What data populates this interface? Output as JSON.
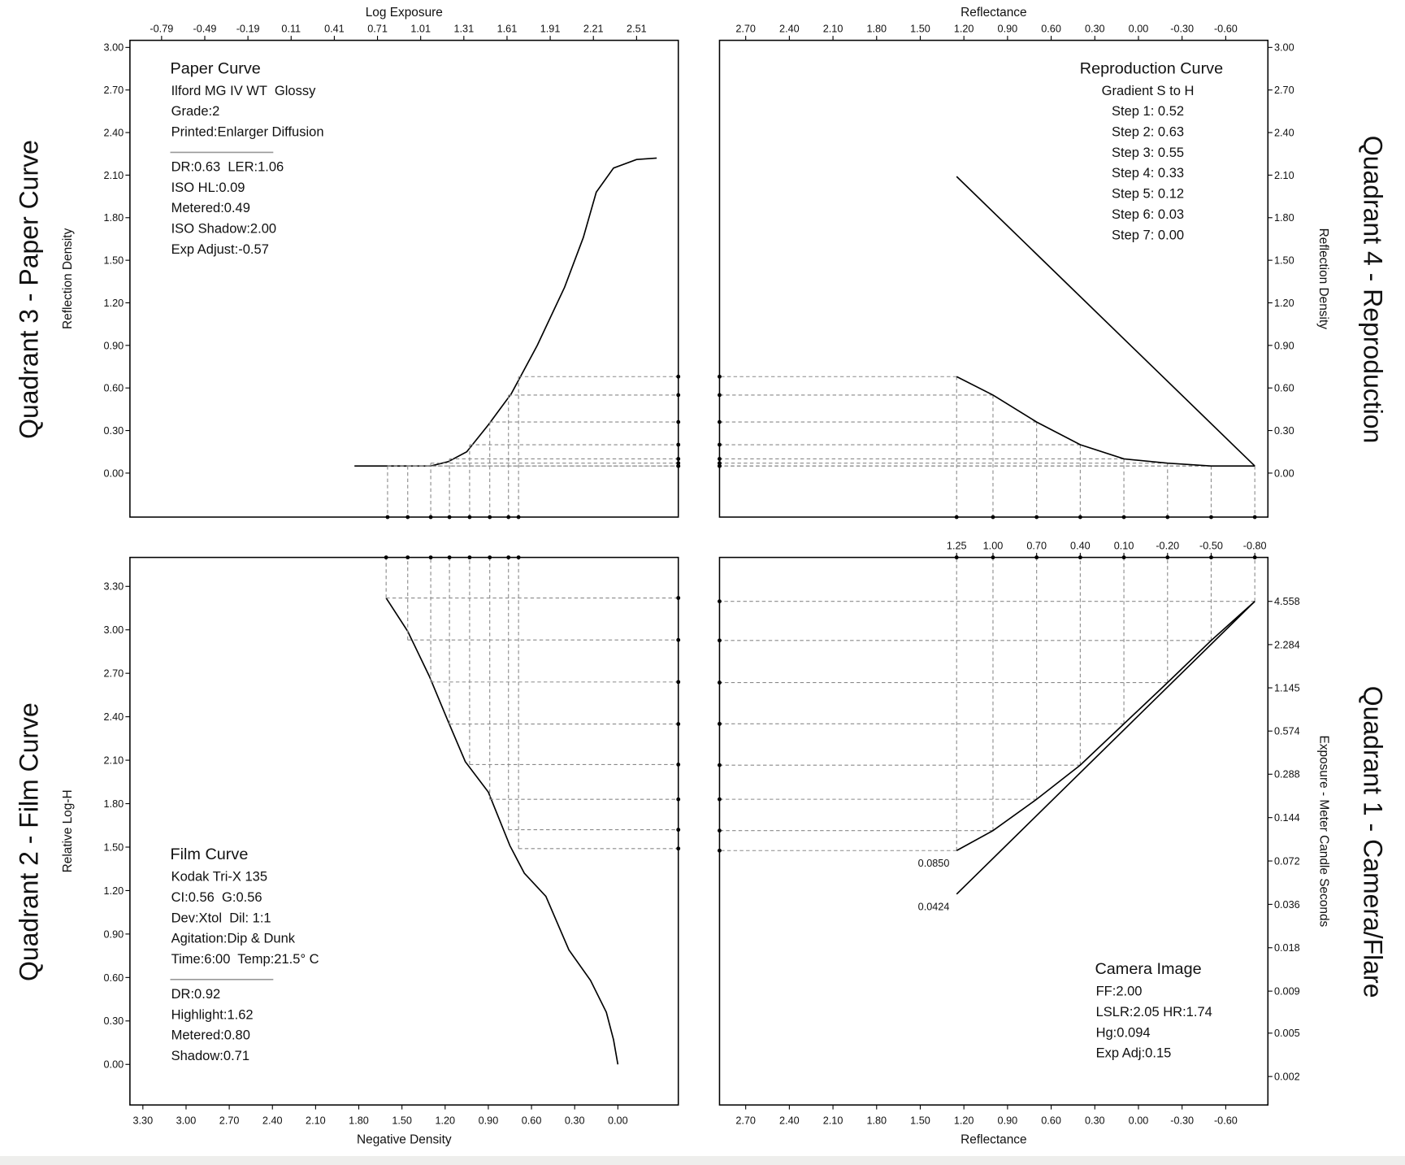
{
  "chart_data": [
    {
      "type": "line",
      "title": "Quadrant 3 - Paper Curve",
      "title_side": "left",
      "xlabel": "Log Exposure",
      "xaxis_side": "top",
      "xlim": [
        -1.01,
        2.8
      ],
      "xticks": [
        -0.79,
        -0.49,
        -0.19,
        0.11,
        0.41,
        0.71,
        1.01,
        1.31,
        1.61,
        1.91,
        2.21,
        2.51
      ],
      "ylabel": "Reflection Density",
      "yaxis_side": "left",
      "ylim": [
        -0.31,
        3.05
      ],
      "yticks": [
        {
          "value": 0,
          "label": "0.00"
        },
        {
          "value": 0.3,
          "label": "0.30"
        },
        {
          "value": 0.6,
          "label": "0.60"
        },
        {
          "value": 0.9,
          "label": "0.90"
        },
        {
          "value": 1.2,
          "label": "1.20"
        },
        {
          "value": 1.5,
          "label": "1.50"
        },
        {
          "value": 1.8,
          "label": "1.80"
        },
        {
          "value": 2.1,
          "label": "2.10"
        },
        {
          "value": 2.4,
          "label": "2.40"
        },
        {
          "value": 2.7,
          "label": "2.70"
        },
        {
          "value": 3,
          "label": "3.00"
        }
      ],
      "series": [
        {
          "color": "#000000",
          "x": [
            0.55,
            1.08,
            1.2,
            1.33,
            1.48,
            1.64,
            1.82,
            2.01,
            2.14,
            2.23,
            2.35,
            2.51,
            2.65
          ],
          "values": [
            0.05,
            0.05,
            0.08,
            0.15,
            0.34,
            0.56,
            0.9,
            1.31,
            1.66,
            1.98,
            2.15,
            2.21,
            2.22
          ]
        },
        {
          "color": "#000000",
          "line": false,
          "guides": [
            "right",
            "bottom"
          ],
          "x": [
            0.78,
            0.92,
            1.08,
            1.21,
            1.35,
            1.49,
            1.62,
            1.69
          ],
          "values": [
            0.05,
            0.05,
            0.07,
            0.1,
            0.2,
            0.36,
            0.55,
            0.68
          ]
        }
      ],
      "notes": {
        "heading": "Paper Curve",
        "lines": [
          "Ilford MG IV WT  Glossy",
          "Grade:2",
          "Printed:Enlarger Diffusion"
        ],
        "more_lines": [
          "DR:0.63  LER:1.06",
          "ISO HL:0.09",
          "Metered:0.49",
          "ISO Shadow:2.00",
          "Exp Adjust:-0.57"
        ]
      }
    },
    {
      "type": "line",
      "title": "Quadrant 4 - Reproduction",
      "title_side": "right",
      "xlabel": "Reflectance",
      "xaxis_side": "top",
      "xlim": [
        2.88,
        -0.89
      ],
      "xticks": [
        {
          "value": 2.7,
          "label": "2.70"
        },
        {
          "value": 2.4,
          "label": "2.40"
        },
        {
          "value": 2.1,
          "label": "2.10"
        },
        {
          "value": 1.8,
          "label": "1.80"
        },
        {
          "value": 1.5,
          "label": "1.50"
        },
        {
          "value": 1.2,
          "label": "1.20"
        },
        {
          "value": 0.9,
          "label": "0.90"
        },
        {
          "value": 0.6,
          "label": "0.60"
        },
        {
          "value": 0.3,
          "label": "0.30"
        },
        {
          "value": 0,
          "label": "0.00"
        },
        {
          "value": -0.3,
          "label": "-0.30"
        },
        {
          "value": -0.6,
          "label": "-0.60"
        }
      ],
      "ylabel": "Reflection Density",
      "yaxis_side": "right",
      "ylim": [
        -0.31,
        3.05
      ],
      "yticks": [
        {
          "value": 0,
          "label": "0.00"
        },
        {
          "value": 0.3,
          "label": "0.30"
        },
        {
          "value": 0.6,
          "label": "0.60"
        },
        {
          "value": 0.9,
          "label": "0.90"
        },
        {
          "value": 1.2,
          "label": "1.20"
        },
        {
          "value": 1.5,
          "label": "1.50"
        },
        {
          "value": 1.8,
          "label": "1.80"
        },
        {
          "value": 2.1,
          "label": "2.10"
        },
        {
          "value": 2.4,
          "label": "2.40"
        },
        {
          "value": 2.7,
          "label": "2.70"
        },
        {
          "value": 3,
          "label": "3.00"
        }
      ],
      "series": [
        {
          "color": "#000000",
          "x": [
            1.25,
            -0.8
          ],
          "values": [
            2.09,
            0.05
          ]
        },
        {
          "color": "#000000",
          "guides": [
            "left",
            "bottom"
          ],
          "x": [
            1.25,
            1.0,
            0.7,
            0.4,
            0.1,
            -0.2,
            -0.5,
            -0.8
          ],
          "values": [
            0.68,
            0.55,
            0.36,
            0.2,
            0.1,
            0.07,
            0.05,
            0.05
          ]
        }
      ],
      "notes": {
        "heading": "Reproduction Curve",
        "lines": [
          "Gradient S to H",
          "Step 1: 0.52",
          "Step 2: 0.63",
          "Step 3: 0.55",
          "Step 4: 0.33",
          "Step 5: 0.12",
          "Step 6: 0.03",
          "Step 7: 0.00"
        ]
      }
    },
    {
      "type": "line",
      "title": "Quadrant 2 - Film Curve",
      "title_side": "left",
      "xlabel": "Negative Density",
      "xaxis_side": "bottom",
      "xlim": [
        3.39,
        -0.42
      ],
      "xticks": [
        {
          "value": 3.3,
          "label": "3.30"
        },
        {
          "value": 3,
          "label": "3.00"
        },
        {
          "value": 2.7,
          "label": "2.70"
        },
        {
          "value": 2.4,
          "label": "2.40"
        },
        {
          "value": 2.1,
          "label": "2.10"
        },
        {
          "value": 1.8,
          "label": "1.80"
        },
        {
          "value": 1.5,
          "label": "1.50"
        },
        {
          "value": 1.2,
          "label": "1.20"
        },
        {
          "value": 0.9,
          "label": "0.90"
        },
        {
          "value": 0.6,
          "label": "0.60"
        },
        {
          "value": 0.3,
          "label": "0.30"
        },
        {
          "value": 0,
          "label": "0.00"
        }
      ],
      "ylabel": "Relative Log-H",
      "yaxis_side": "left",
      "ylim": [
        -0.28,
        3.5
      ],
      "yticks": [
        {
          "value": 0,
          "label": "0.00"
        },
        {
          "value": 0.3,
          "label": "0.30"
        },
        {
          "value": 0.6,
          "label": "0.60"
        },
        {
          "value": 0.9,
          "label": "0.90"
        },
        {
          "value": 1.2,
          "label": "1.20"
        },
        {
          "value": 1.5,
          "label": "1.50"
        },
        {
          "value": 1.8,
          "label": "1.80"
        },
        {
          "value": 2.1,
          "label": "2.10"
        },
        {
          "value": 2.4,
          "label": "2.40"
        },
        {
          "value": 2.7,
          "label": "2.70"
        },
        {
          "value": 3,
          "label": "3.00"
        },
        {
          "value": 3.3,
          "label": "3.30"
        }
      ],
      "series": [
        {
          "color": "#000000",
          "x": [
            0,
            0.03,
            0.08,
            0.19,
            0.34,
            0.5,
            0.65,
            0.75,
            0.9,
            1.06,
            1.18,
            1.31,
            1.46,
            1.61
          ],
          "values": [
            0,
            0.17,
            0.36,
            0.58,
            0.79,
            1.16,
            1.32,
            1.51,
            1.88,
            2.09,
            2.37,
            2.68,
            2.99,
            3.22
          ]
        },
        {
          "color": "#000000",
          "line": false,
          "guides": [
            "top",
            "right"
          ],
          "x": [
            1.61,
            1.46,
            1.3,
            1.17,
            1.03,
            0.89,
            0.76,
            0.69
          ],
          "values": [
            3.22,
            2.93,
            2.64,
            2.35,
            2.07,
            1.83,
            1.62,
            1.49
          ]
        }
      ],
      "notes": {
        "heading": "Film Curve",
        "lines": [
          "Kodak Tri-X 135",
          "CI:0.56  G:0.56",
          "Dev:Xtol  Dil: 1:1",
          "Agitation:Dip & Dunk",
          "Time:6:00  Temp:21.5° C"
        ],
        "more_lines": [
          "DR:0.92",
          "Highlight:1.62",
          "Metered:0.80",
          "Shadow:0.71"
        ]
      }
    },
    {
      "type": "line",
      "title": "Quadrant 1 - Camera/Flare",
      "title_side": "right",
      "xlabel": "Reflectance",
      "xaxis_side": "bottom",
      "xlim": [
        2.88,
        -0.89
      ],
      "xticks": [
        {
          "value": 2.7,
          "label": "2.70"
        },
        {
          "value": 2.4,
          "label": "2.40"
        },
        {
          "value": 2.1,
          "label": "2.10"
        },
        {
          "value": 1.8,
          "label": "1.80"
        },
        {
          "value": 1.5,
          "label": "1.50"
        },
        {
          "value": 1.2,
          "label": "1.20"
        },
        {
          "value": 0.9,
          "label": "0.90"
        },
        {
          "value": 0.6,
          "label": "0.60"
        },
        {
          "value": 0.3,
          "label": "0.30"
        },
        {
          "value": 0,
          "label": "0.00"
        },
        {
          "value": -0.3,
          "label": "-0.30"
        },
        {
          "value": -0.6,
          "label": "-0.60"
        }
      ],
      "x2ticks": [
        1.25,
        {
          "value": 1,
          "label": "1.00"
        },
        {
          "value": 0.7,
          "label": "0.70"
        },
        {
          "value": 0.4,
          "label": "0.40"
        },
        {
          "value": 0.1,
          "label": "0.10"
        },
        {
          "value": -0.2,
          "label": "-0.20"
        },
        {
          "value": -0.5,
          "label": "-0.50"
        },
        {
          "value": -0.8,
          "label": "-0.80"
        }
      ],
      "ylabel": "Exposure - Meter Candle Seconds",
      "yaxis_side": "right",
      "log_y": true,
      "ylim": [
        0.00146,
        9.2
      ],
      "yticks": [
        4.558,
        2.284,
        1.145,
        0.574,
        0.288,
        0.144,
        0.072,
        0.036,
        0.018,
        0.009,
        {
          "value": 0.0046,
          "label": "0.005"
        },
        {
          "value": 0.0023,
          "label": "0.002"
        }
      ],
      "series": [
        {
          "color": "#000000",
          "guides": [
            "left",
            "top"
          ],
          "x": [
            1.25,
            1.0,
            0.7,
            0.4,
            0.1,
            -0.2,
            -0.5,
            -0.8
          ],
          "values": [
            0.085,
            0.117,
            0.193,
            0.333,
            0.644,
            1.245,
            2.44,
            4.558
          ],
          "value_labels": [
            "0.0850",
            null,
            null,
            null,
            null,
            null,
            null,
            null
          ]
        },
        {
          "color": "#000000",
          "x": [
            1.25,
            -0.8
          ],
          "values": [
            0.0424,
            4.558
          ],
          "value_labels": [
            "0.0424",
            null
          ]
        }
      ],
      "notes": {
        "heading": "Camera Image",
        "lines": [
          "FF:2.00",
          "LSLR:2.05 HR:1.74",
          "Hg:0.094",
          "Exp Adj:0.15"
        ]
      }
    }
  ]
}
